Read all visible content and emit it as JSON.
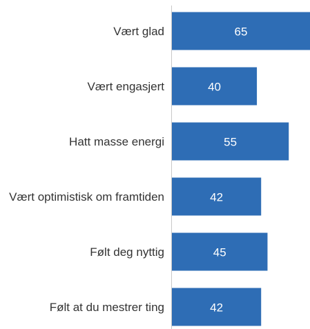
{
  "chart_data": {
    "type": "bar",
    "orientation": "horizontal",
    "categories": [
      "Vært glad",
      "Vært engasjert",
      "Hatt masse energi",
      "Vært optimistisk om framtiden",
      "Følt deg nyttig",
      "Følt at du mestrer ting"
    ],
    "values": [
      65,
      40,
      55,
      42,
      45,
      42
    ],
    "color": "#2e6db5",
    "xlim": [
      0,
      65
    ]
  }
}
